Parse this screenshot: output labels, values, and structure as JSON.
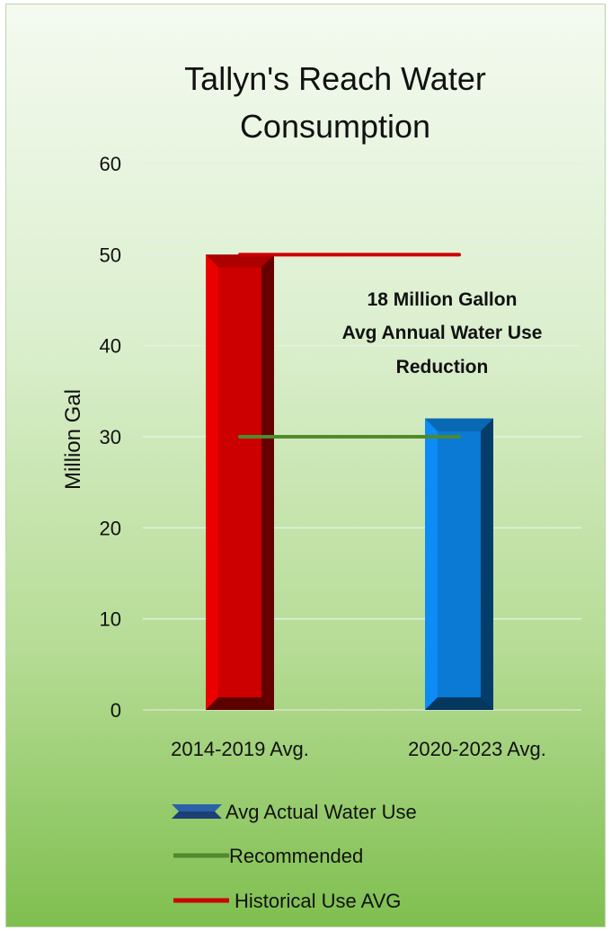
{
  "chart_data": {
    "type": "bar",
    "title_lines": [
      "Tallyn's Reach Water",
      "Consumption"
    ],
    "ylabel": "Million Gal",
    "xlabel": "",
    "ylim": [
      0,
      60
    ],
    "yticks": [
      "0",
      "10",
      "20",
      "30",
      "40",
      "50",
      "60"
    ],
    "categories": [
      "2014-2019 Avg.",
      "2020-2023 Avg."
    ],
    "series": [
      {
        "name": "Avg Actual Water Use",
        "kind": "bar",
        "values": [
          50,
          32
        ],
        "colors": [
          "#cc0000",
          "#0a7ad4"
        ]
      },
      {
        "name": "Recommended",
        "kind": "line",
        "values": [
          30,
          30
        ],
        "color": "#4f8a2b"
      },
      {
        "name": "Historical Use AVG",
        "kind": "line",
        "values": [
          50,
          50
        ],
        "color": "#cc0000"
      }
    ],
    "annotation_lines": [
      "18 Million Gallon",
      "Avg Annual Water Use",
      "Reduction"
    ],
    "grid": true,
    "legend_position": "bottom"
  }
}
